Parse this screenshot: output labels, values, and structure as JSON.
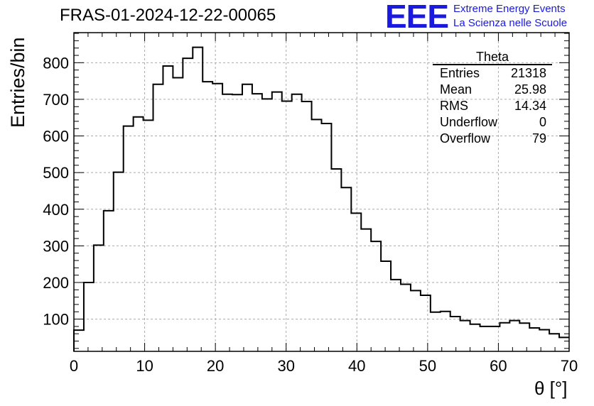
{
  "page": {
    "title": "FRAS-01-2024-12-22-00065",
    "logo": {
      "mark": "EEE",
      "line1": "Extreme Energy Events",
      "line2": "La Scienza nelle Scuole",
      "color": "#1a1adf"
    }
  },
  "stats": {
    "title": "Theta",
    "rows": [
      {
        "label": "Entries",
        "value": "21318"
      },
      {
        "label": "Mean",
        "value": "25.98"
      },
      {
        "label": "RMS",
        "value": "14.34"
      },
      {
        "label": "Underflow",
        "value": "0"
      },
      {
        "label": "Overflow",
        "value": "79"
      }
    ]
  },
  "chart_data": {
    "type": "bar",
    "histogram": true,
    "title": "FRAS-01-2024-12-22-00065",
    "xlabel": "θ [°]",
    "ylabel": "Entries/bin",
    "xlim": [
      0,
      70
    ],
    "ylim": [
      12,
      882
    ],
    "grid": true,
    "bin_width": 1.4,
    "bin_edges_start": 0,
    "values": [
      70,
      200,
      302,
      396,
      501,
      627,
      652,
      643,
      741,
      791,
      759,
      812,
      842,
      748,
      743,
      714,
      713,
      741,
      715,
      701,
      720,
      695,
      714,
      694,
      645,
      634,
      510,
      459,
      389,
      346,
      312,
      258,
      208,
      195,
      178,
      165,
      119,
      121,
      107,
      96,
      86,
      80,
      80,
      90,
      96,
      89,
      76,
      71,
      60,
      50
    ],
    "x_ticks": [
      0,
      10,
      20,
      30,
      40,
      50,
      60,
      70
    ],
    "y_ticks": [
      100,
      200,
      300,
      400,
      500,
      600,
      700,
      800
    ],
    "line_color": "#000000",
    "grid_color": "#aaaaaa"
  }
}
